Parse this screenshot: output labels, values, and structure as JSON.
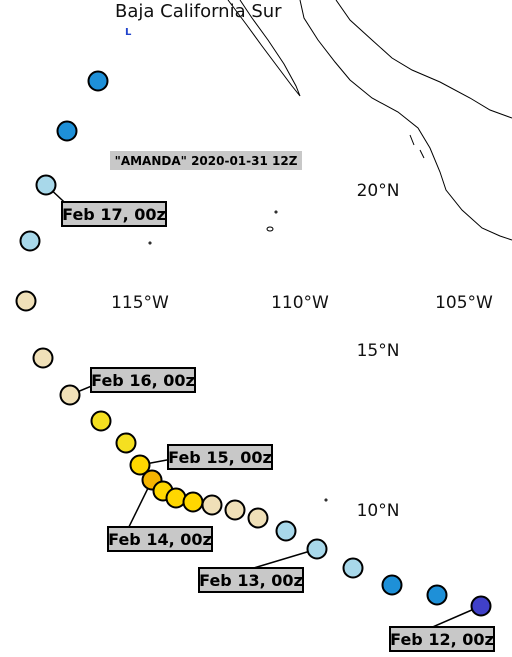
{
  "header": {
    "region": "Baja California Sur",
    "marker": "L",
    "storm_label": "\"AMANDA\" 2020-01-31 12Z"
  },
  "map": {
    "lon_labels": [
      "115°W",
      "110°W",
      "105°W"
    ],
    "lat_labels": [
      "20°N",
      "15°N",
      "10°N"
    ]
  },
  "track": {
    "labels": [
      "Feb 17, 00z",
      "Feb 16, 00z",
      "Feb 15, 00z",
      "Feb 14, 00z",
      "Feb 13, 00z",
      "Feb 12, 00z"
    ]
  }
}
